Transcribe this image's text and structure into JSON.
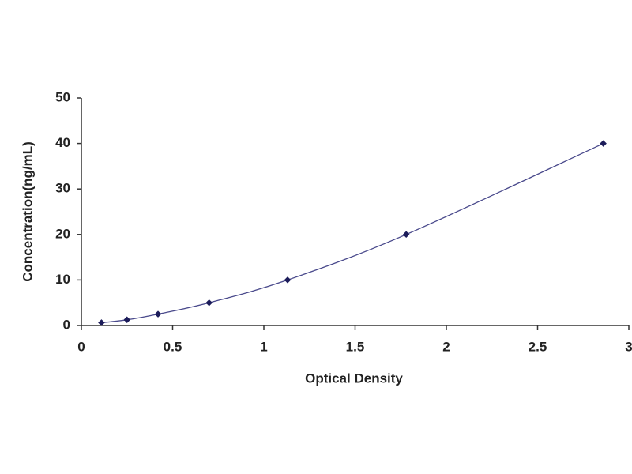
{
  "chart_data": {
    "type": "scatter",
    "x": [
      0.11,
      0.25,
      0.42,
      0.7,
      1.13,
      1.78,
      2.86
    ],
    "values": [
      0.625,
      1.25,
      2.5,
      5,
      10,
      20,
      40
    ],
    "color": "#1c1c5a",
    "line_color": "#4a4a8c",
    "smooth_line": true,
    "xlabel": "Optical Density",
    "ylabel": "Concentration(ng/mL)",
    "xlim": [
      0,
      3
    ],
    "xticks": [
      0,
      0.5,
      1,
      1.5,
      2,
      2.5,
      3
    ],
    "ylim": [
      0,
      50
    ],
    "yticks": [
      0,
      10,
      20,
      30,
      40,
      50
    ],
    "grid": false
  }
}
